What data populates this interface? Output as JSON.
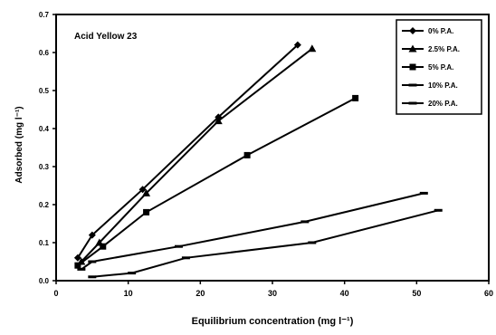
{
  "chart_data": {
    "type": "line",
    "title": "Acid Yellow 23",
    "xlabel": "Equilibrium concentration (mg l⁻¹)",
    "ylabel": "Adsorbed (mg l⁻¹)",
    "xlim": [
      0,
      60
    ],
    "ylim": [
      0,
      0.7
    ],
    "xticks": [
      0,
      10,
      20,
      30,
      40,
      50,
      60
    ],
    "yticks": [
      0.0,
      0.1,
      0.2,
      0.3,
      0.4,
      0.5,
      0.6,
      0.7
    ],
    "ytick_labels": [
      "0.0",
      "0.1",
      "0.2",
      "0.3",
      "0.4",
      "0.5",
      "0.6",
      "0.7"
    ],
    "grid": false,
    "legend_position": "top-right",
    "series": [
      {
        "name": "0% P.A.",
        "marker": "diamond",
        "x": [
          3,
          5,
          12,
          22.5,
          33.5
        ],
        "y": [
          0.06,
          0.12,
          0.24,
          0.43,
          0.62
        ]
      },
      {
        "name": "2.5% P.A.",
        "marker": "triangle",
        "x": [
          3.5,
          6,
          12.5,
          22.5,
          35.5
        ],
        "y": [
          0.05,
          0.1,
          0.23,
          0.42,
          0.61
        ]
      },
      {
        "name": "5% P.A.",
        "marker": "square",
        "x": [
          3,
          6.5,
          12.5,
          26.5,
          41.5
        ],
        "y": [
          0.04,
          0.09,
          0.18,
          0.33,
          0.48
        ]
      },
      {
        "name": "10% P.A.",
        "marker": "dash",
        "x": [
          3.5,
          5,
          17,
          34.5,
          51
        ],
        "y": [
          0.03,
          0.05,
          0.09,
          0.155,
          0.23
        ]
      },
      {
        "name": "20% P.A.",
        "marker": "dash",
        "x": [
          5,
          10.5,
          18,
          35.5,
          53
        ],
        "y": [
          0.01,
          0.02,
          0.06,
          0.1,
          0.185
        ]
      }
    ]
  }
}
